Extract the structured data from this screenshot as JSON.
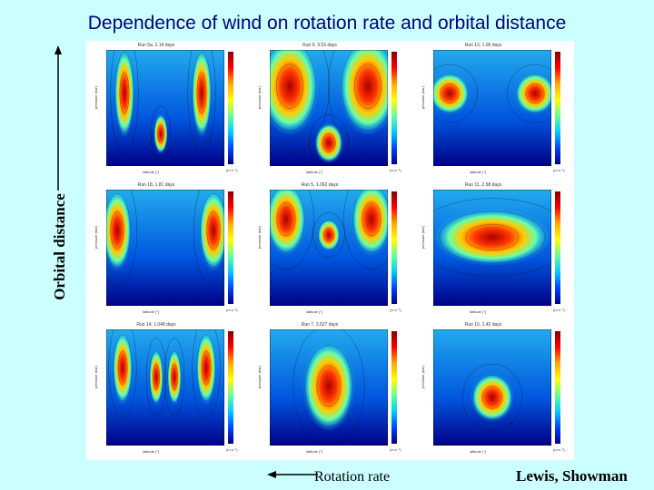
{
  "title": "Dependence of wind on rotation rate and orbital distance",
  "y_axis_label": "Orbital distance",
  "x_axis_label": "Rotation rate",
  "credit": "Lewis, Showman",
  "panel_common": {
    "xlabel": "latitude (°)",
    "ylabel": "pressure (bar)",
    "unit": "(m s⁻¹)"
  },
  "panels": [
    {
      "title": "Run 5a, 2.14 days",
      "pattern": "narrow-jets"
    },
    {
      "title": "Run 9, 3.53 days",
      "pattern": "u-shape"
    },
    {
      "title": "Run 13, 1.06 days",
      "pattern": "two-highlat-jets"
    },
    {
      "title": "Run 18, 1.81 days",
      "pattern": "two-jets-wide"
    },
    {
      "title": "Run 5, 1.062 days",
      "pattern": "w-shape"
    },
    {
      "title": "Run 11, 2.58 days",
      "pattern": "broad-equatorial"
    },
    {
      "title": "Run 14, 1.048 days",
      "pattern": "narrow-jets-deep"
    },
    {
      "title": "Run 7, 3.527 days",
      "pattern": "equatorial-jet"
    },
    {
      "title": "Run 10, 1.42 days",
      "pattern": "narrow-equatorial"
    }
  ]
}
